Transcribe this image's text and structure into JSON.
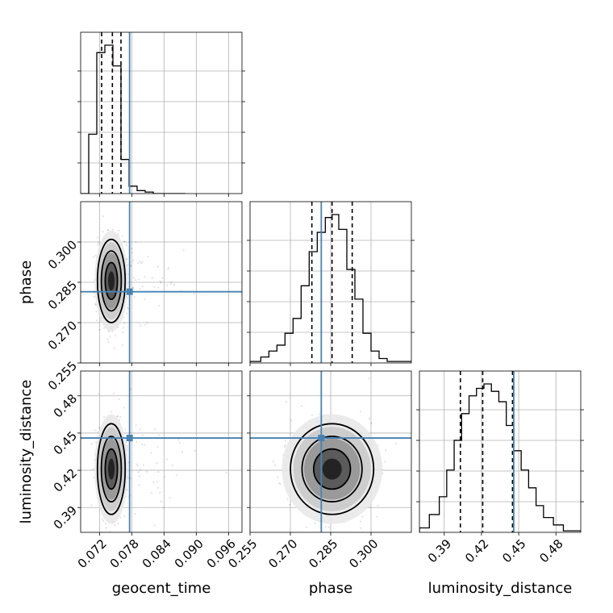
{
  "params": {
    "geocent_time": {
      "label": "geocent_time",
      "range": [
        0.0685,
        0.0985
      ],
      "ticks": [
        0.072,
        0.078,
        0.084,
        0.09,
        0.096
      ],
      "tick_labels": [
        "0.072",
        "0.078",
        "0.084",
        "0.090",
        "0.096"
      ],
      "truth": 0.0776,
      "quantiles": [
        0.0724,
        0.0744,
        0.076
      ],
      "hist_edges": [
        0.0685,
        0.07,
        0.0715,
        0.073,
        0.0745,
        0.076,
        0.0775,
        0.079,
        0.0805,
        0.082,
        0.0835,
        0.085,
        0.0865,
        0.088
      ],
      "hist_counts": [
        0,
        0.4,
        0.95,
        1.0,
        0.86,
        0.23,
        0.05,
        0.02,
        0.01,
        0,
        0,
        0,
        0
      ],
      "mean": 0.0742,
      "sd": 0.0012
    },
    "phase": {
      "label": "phase",
      "range": [
        0.255,
        0.315
      ],
      "ticks": [
        0.255,
        0.27,
        0.285,
        0.3
      ],
      "tick_labels": [
        "0.255",
        "0.270",
        "0.285",
        "0.300"
      ],
      "truth": 0.2815,
      "quantiles": [
        0.278,
        0.2855,
        0.293
      ],
      "hist_edges": [
        0.255,
        0.259,
        0.262,
        0.265,
        0.268,
        0.271,
        0.274,
        0.277,
        0.28,
        0.283,
        0.2855,
        0.288,
        0.291,
        0.294,
        0.297,
        0.3,
        0.303,
        0.306,
        0.315
      ],
      "hist_counts": [
        0.01,
        0.04,
        0.08,
        0.12,
        0.2,
        0.3,
        0.52,
        0.75,
        0.88,
        0.98,
        1.0,
        0.9,
        0.63,
        0.43,
        0.2,
        0.08,
        0.03,
        0.01
      ],
      "mean": 0.2855,
      "sd": 0.0072
    },
    "luminosity_distance": {
      "label": "luminosity_distance",
      "range": [
        0.37,
        0.5
      ],
      "ticks": [
        0.39,
        0.42,
        0.45,
        0.48
      ],
      "tick_labels": [
        "0.39",
        "0.42",
        "0.45",
        "0.48"
      ],
      "truth": 0.446,
      "quantiles": [
        0.403,
        0.421,
        0.445
      ],
      "hist_edges": [
        0.37,
        0.378,
        0.386,
        0.392,
        0.398,
        0.404,
        0.41,
        0.416,
        0.422,
        0.428,
        0.434,
        0.44,
        0.446,
        0.452,
        0.458,
        0.464,
        0.47,
        0.478,
        0.486,
        0.5
      ],
      "hist_counts": [
        0.03,
        0.12,
        0.24,
        0.42,
        0.62,
        0.8,
        0.92,
        0.97,
        1.0,
        0.95,
        0.88,
        0.72,
        0.55,
        0.42,
        0.3,
        0.18,
        0.1,
        0.05,
        0.01
      ],
      "mean": 0.421,
      "sd": 0.017
    }
  },
  "order": [
    "geocent_time",
    "phase",
    "luminosity_distance"
  ],
  "colors": {
    "truth": "#4682b4",
    "line": "#000000",
    "grid": "#b0b0b0"
  },
  "row_labels": [
    "",
    "phase",
    "luminosity_distance"
  ],
  "col_labels": [
    "geocent_time",
    "phase",
    "luminosity_distance"
  ],
  "chart_data": {
    "type": "corner",
    "parameters": [
      "geocent_time",
      "phase",
      "luminosity_distance"
    ],
    "truths": {
      "geocent_time": 0.0776,
      "phase": 0.2815,
      "luminosity_distance": 0.446
    },
    "quantiles_16_50_84": {
      "geocent_time": [
        0.0724,
        0.0744,
        0.076
      ],
      "phase": [
        0.278,
        0.2855,
        0.293
      ],
      "luminosity_distance": [
        0.403,
        0.421,
        0.445
      ]
    },
    "grid": true
  }
}
